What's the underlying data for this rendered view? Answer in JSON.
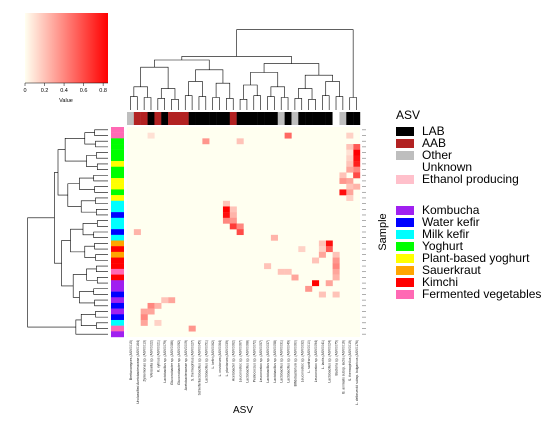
{
  "chart_data": {
    "type": "heatmap",
    "title": "",
    "xlabel": "ASV",
    "ylabel": "Sample",
    "color_key": {
      "label": "Value",
      "ticks": [
        "0",
        "0.2",
        "0.4",
        "0.6",
        "0.8"
      ],
      "range": [
        0,
        0.85
      ],
      "low_color": "#FFFFF0",
      "high_color": "#FF0000"
    },
    "asv_legend": {
      "title": "ASV",
      "entries": [
        {
          "label": "LAB",
          "color": "#000000"
        },
        {
          "label": "AAB",
          "color": "#B22222"
        },
        {
          "label": "Other",
          "color": "#BEBEBE"
        },
        {
          "label": "Unknown",
          "color": "#FFFFFF"
        },
        {
          "label": "Ethanol producing",
          "color": "#FFC0CB"
        }
      ]
    },
    "sample_legend": {
      "title": "Sample",
      "entries": [
        {
          "label": "Kombucha",
          "color": "#A020F0"
        },
        {
          "label": "Water kefir",
          "color": "#0000FF"
        },
        {
          "label": "Milk kefir",
          "color": "#00FFFF"
        },
        {
          "label": "Yoghurt",
          "color": "#00FF00"
        },
        {
          "label": "Plant-based yoghurt",
          "color": "#FFFF00"
        },
        {
          "label": "Sauerkraut",
          "color": "#FFA500"
        },
        {
          "label": "Kimchi",
          "color": "#FF0000"
        },
        {
          "label": "Fermented vegetables",
          "color": "#FF69B4"
        }
      ]
    },
    "asv_labels": [
      "Brettanomyces (ASV0015)",
      "Unclassified Acetobacteraceae (ASV0164)",
      "Zymomonas sp. (ASV0013)",
      "Weissella sp. (ASV0022)",
      "K. xylinus (ASV0021)",
      "Lactobacillus sp. (ASV0079)",
      "Gluconobacter sp. (ASV0086)",
      "Gluconobacter sp. (ASV0092)",
      "Acetobacteraceae sp. (ASV0009)",
      "S. thermophilus (ASV0027)",
      "Schleiferilactobacillus sp. (ASV0045)",
      "Lactobacillus sp. (ASV0051)",
      "L. kefiri (ASV0062)",
      "L. crustorum (ASV0064)",
      "L. plantarum (ASV0039)",
      "Acetobacter sp. (ASV0062)",
      "Leuconostoc sp. (ASV0067)",
      "Lactobacillus sp. (ASV0068)",
      "Pediococcus sp. (ASV0072)",
      "Leuconostoc sp. (ASV0057)",
      "Lactobacillus sp. (ASV0037)",
      "Lactobacillus sp. (ASV0058)",
      "Lactobacillus sp. (ASV0031)",
      "Lactobacillus sp. (ASV0049)",
      "Bifidobacterium sp. (ASV0060)",
      "Leuconostoc sp. (ASV0032)",
      "L. sanfran (ASV0010)",
      "Leuconostoc sp. (ASV0094)",
      "L. lactis (ASV0041)",
      "Lactobacillus sp. (ASV0024)",
      "Bacteria sp. (ASV0075)",
      "B. animalis subsp. lactis (ASV0016)",
      "S. thermophilus (ASV0019)",
      "L. delbrueckii subsp. bulgaricus (ASV0176)"
    ],
    "asv_groups": [
      "Other",
      "AAB",
      "AAB",
      "LAB",
      "AAB",
      "LAB",
      "AAB",
      "AAB",
      "AAB",
      "LAB",
      "LAB",
      "LAB",
      "LAB",
      "LAB",
      "LAB",
      "AAB",
      "LAB",
      "LAB",
      "LAB",
      "LAB",
      "LAB",
      "LAB",
      "Other",
      "LAB",
      "Other",
      "LAB",
      "LAB",
      "LAB",
      "LAB",
      "LAB",
      "Unknown",
      "Other",
      "LAB",
      "LAB"
    ],
    "sample_groups": [
      "Fermented vegetables",
      "Fermented vegetables",
      "Yoghurt",
      "Yoghurt",
      "Yoghurt",
      "Yoghurt",
      "Plant-based yoghurt",
      "Yoghurt",
      "Yoghurt",
      "Plant-based yoghurt",
      "Plant-based yoghurt",
      "Yoghurt",
      "Plant-based yoghurt",
      "Milk kefir",
      "Milk kefir",
      "Water kefir",
      "Milk kefir",
      "Milk kefir",
      "Water kefir",
      "Milk kefir",
      "Sauerkraut",
      "Kimchi",
      "Sauerkraut",
      "Kimchi",
      "Kimchi",
      "Fermented vegetables",
      "Kimchi",
      "Kombucha",
      "Kombucha",
      "Water kefir",
      "Kombucha",
      "Water kefir",
      "Kombucha",
      "Water kefir",
      "Milk kefir",
      "Fermented vegetables",
      "Kombucha"
    ],
    "values": [
      {
        "row": 1,
        "col": 32,
        "v": 0.15
      },
      {
        "row": 1,
        "col": 23,
        "v": 0.5
      },
      {
        "row": 1,
        "col": 3,
        "v": 0.1
      },
      {
        "row": 2,
        "col": 11,
        "v": 0.35
      },
      {
        "row": 2,
        "col": 16,
        "v": 0.2
      },
      {
        "row": 3,
        "col": 33,
        "v": 0.55
      },
      {
        "row": 3,
        "col": 32,
        "v": 0.2
      },
      {
        "row": 4,
        "col": 33,
        "v": 0.85
      },
      {
        "row": 4,
        "col": 32,
        "v": 0.1
      },
      {
        "row": 5,
        "col": 33,
        "v": 0.8
      },
      {
        "row": 5,
        "col": 32,
        "v": 0.15
      },
      {
        "row": 6,
        "col": 33,
        "v": 0.75
      },
      {
        "row": 6,
        "col": 32,
        "v": 0.2
      },
      {
        "row": 7,
        "col": 33,
        "v": 0.4
      },
      {
        "row": 7,
        "col": 32,
        "v": 0.3
      },
      {
        "row": 8,
        "col": 33,
        "v": 0.6
      },
      {
        "row": 8,
        "col": 31,
        "v": 0.2
      },
      {
        "row": 9,
        "col": 31,
        "v": 0.35
      },
      {
        "row": 9,
        "col": 32,
        "v": 0.3
      },
      {
        "row": 10,
        "col": 32,
        "v": 0.2
      },
      {
        "row": 10,
        "col": 33,
        "v": 0.25
      },
      {
        "row": 11,
        "col": 31,
        "v": 0.8
      },
      {
        "row": 11,
        "col": 32,
        "v": 0.3
      },
      {
        "row": 12,
        "col": 32,
        "v": 0.15
      },
      {
        "row": 13,
        "col": 14,
        "v": 0.2
      },
      {
        "row": 14,
        "col": 14,
        "v": 0.85
      },
      {
        "row": 14,
        "col": 15,
        "v": 0.2
      },
      {
        "row": 15,
        "col": 14,
        "v": 0.8
      },
      {
        "row": 15,
        "col": 15,
        "v": 0.25
      },
      {
        "row": 16,
        "col": 14,
        "v": 0.4
      },
      {
        "row": 16,
        "col": 15,
        "v": 0.35
      },
      {
        "row": 17,
        "col": 15,
        "v": 0.65
      },
      {
        "row": 17,
        "col": 16,
        "v": 0.4
      },
      {
        "row": 18,
        "col": 16,
        "v": 0.6
      },
      {
        "row": 18,
        "col": 1,
        "v": 0.25
      },
      {
        "row": 19,
        "col": 21,
        "v": 0.25
      },
      {
        "row": 20,
        "col": 29,
        "v": 0.8
      },
      {
        "row": 20,
        "col": 28,
        "v": 0.2
      },
      {
        "row": 21,
        "col": 29,
        "v": 0.55
      },
      {
        "row": 21,
        "col": 28,
        "v": 0.15
      },
      {
        "row": 21,
        "col": 25,
        "v": 0.15
      },
      {
        "row": 22,
        "col": 28,
        "v": 0.3
      },
      {
        "row": 22,
        "col": 30,
        "v": 0.2
      },
      {
        "row": 23,
        "col": 30,
        "v": 0.35
      },
      {
        "row": 23,
        "col": 27,
        "v": 0.2
      },
      {
        "row": 24,
        "col": 30,
        "v": 0.4
      },
      {
        "row": 24,
        "col": 20,
        "v": 0.2
      },
      {
        "row": 25,
        "col": 30,
        "v": 0.3
      },
      {
        "row": 25,
        "col": 23,
        "v": 0.2
      },
      {
        "row": 25,
        "col": 22,
        "v": 0.2
      },
      {
        "row": 26,
        "col": 24,
        "v": 0.3
      },
      {
        "row": 26,
        "col": 30,
        "v": 0.25
      },
      {
        "row": 27,
        "col": 27,
        "v": 0.85
      },
      {
        "row": 27,
        "col": 29,
        "v": 0.3
      },
      {
        "row": 28,
        "col": 26,
        "v": 0.35
      },
      {
        "row": 29,
        "col": 28,
        "v": 0.2
      },
      {
        "row": 29,
        "col": 30,
        "v": 0.2
      },
      {
        "row": 30,
        "col": 6,
        "v": 0.3
      },
      {
        "row": 30,
        "col": 5,
        "v": 0.2
      },
      {
        "row": 31,
        "col": 3,
        "v": 0.4
      },
      {
        "row": 31,
        "col": 4,
        "v": 0.25
      },
      {
        "row": 32,
        "col": 3,
        "v": 0.3
      },
      {
        "row": 32,
        "col": 2,
        "v": 0.3
      },
      {
        "row": 33,
        "col": 2,
        "v": 0.4
      },
      {
        "row": 34,
        "col": 2,
        "v": 0.3
      },
      {
        "row": 34,
        "col": 4,
        "v": 0.15
      },
      {
        "row": 35,
        "col": 9,
        "v": 0.35
      }
    ]
  }
}
